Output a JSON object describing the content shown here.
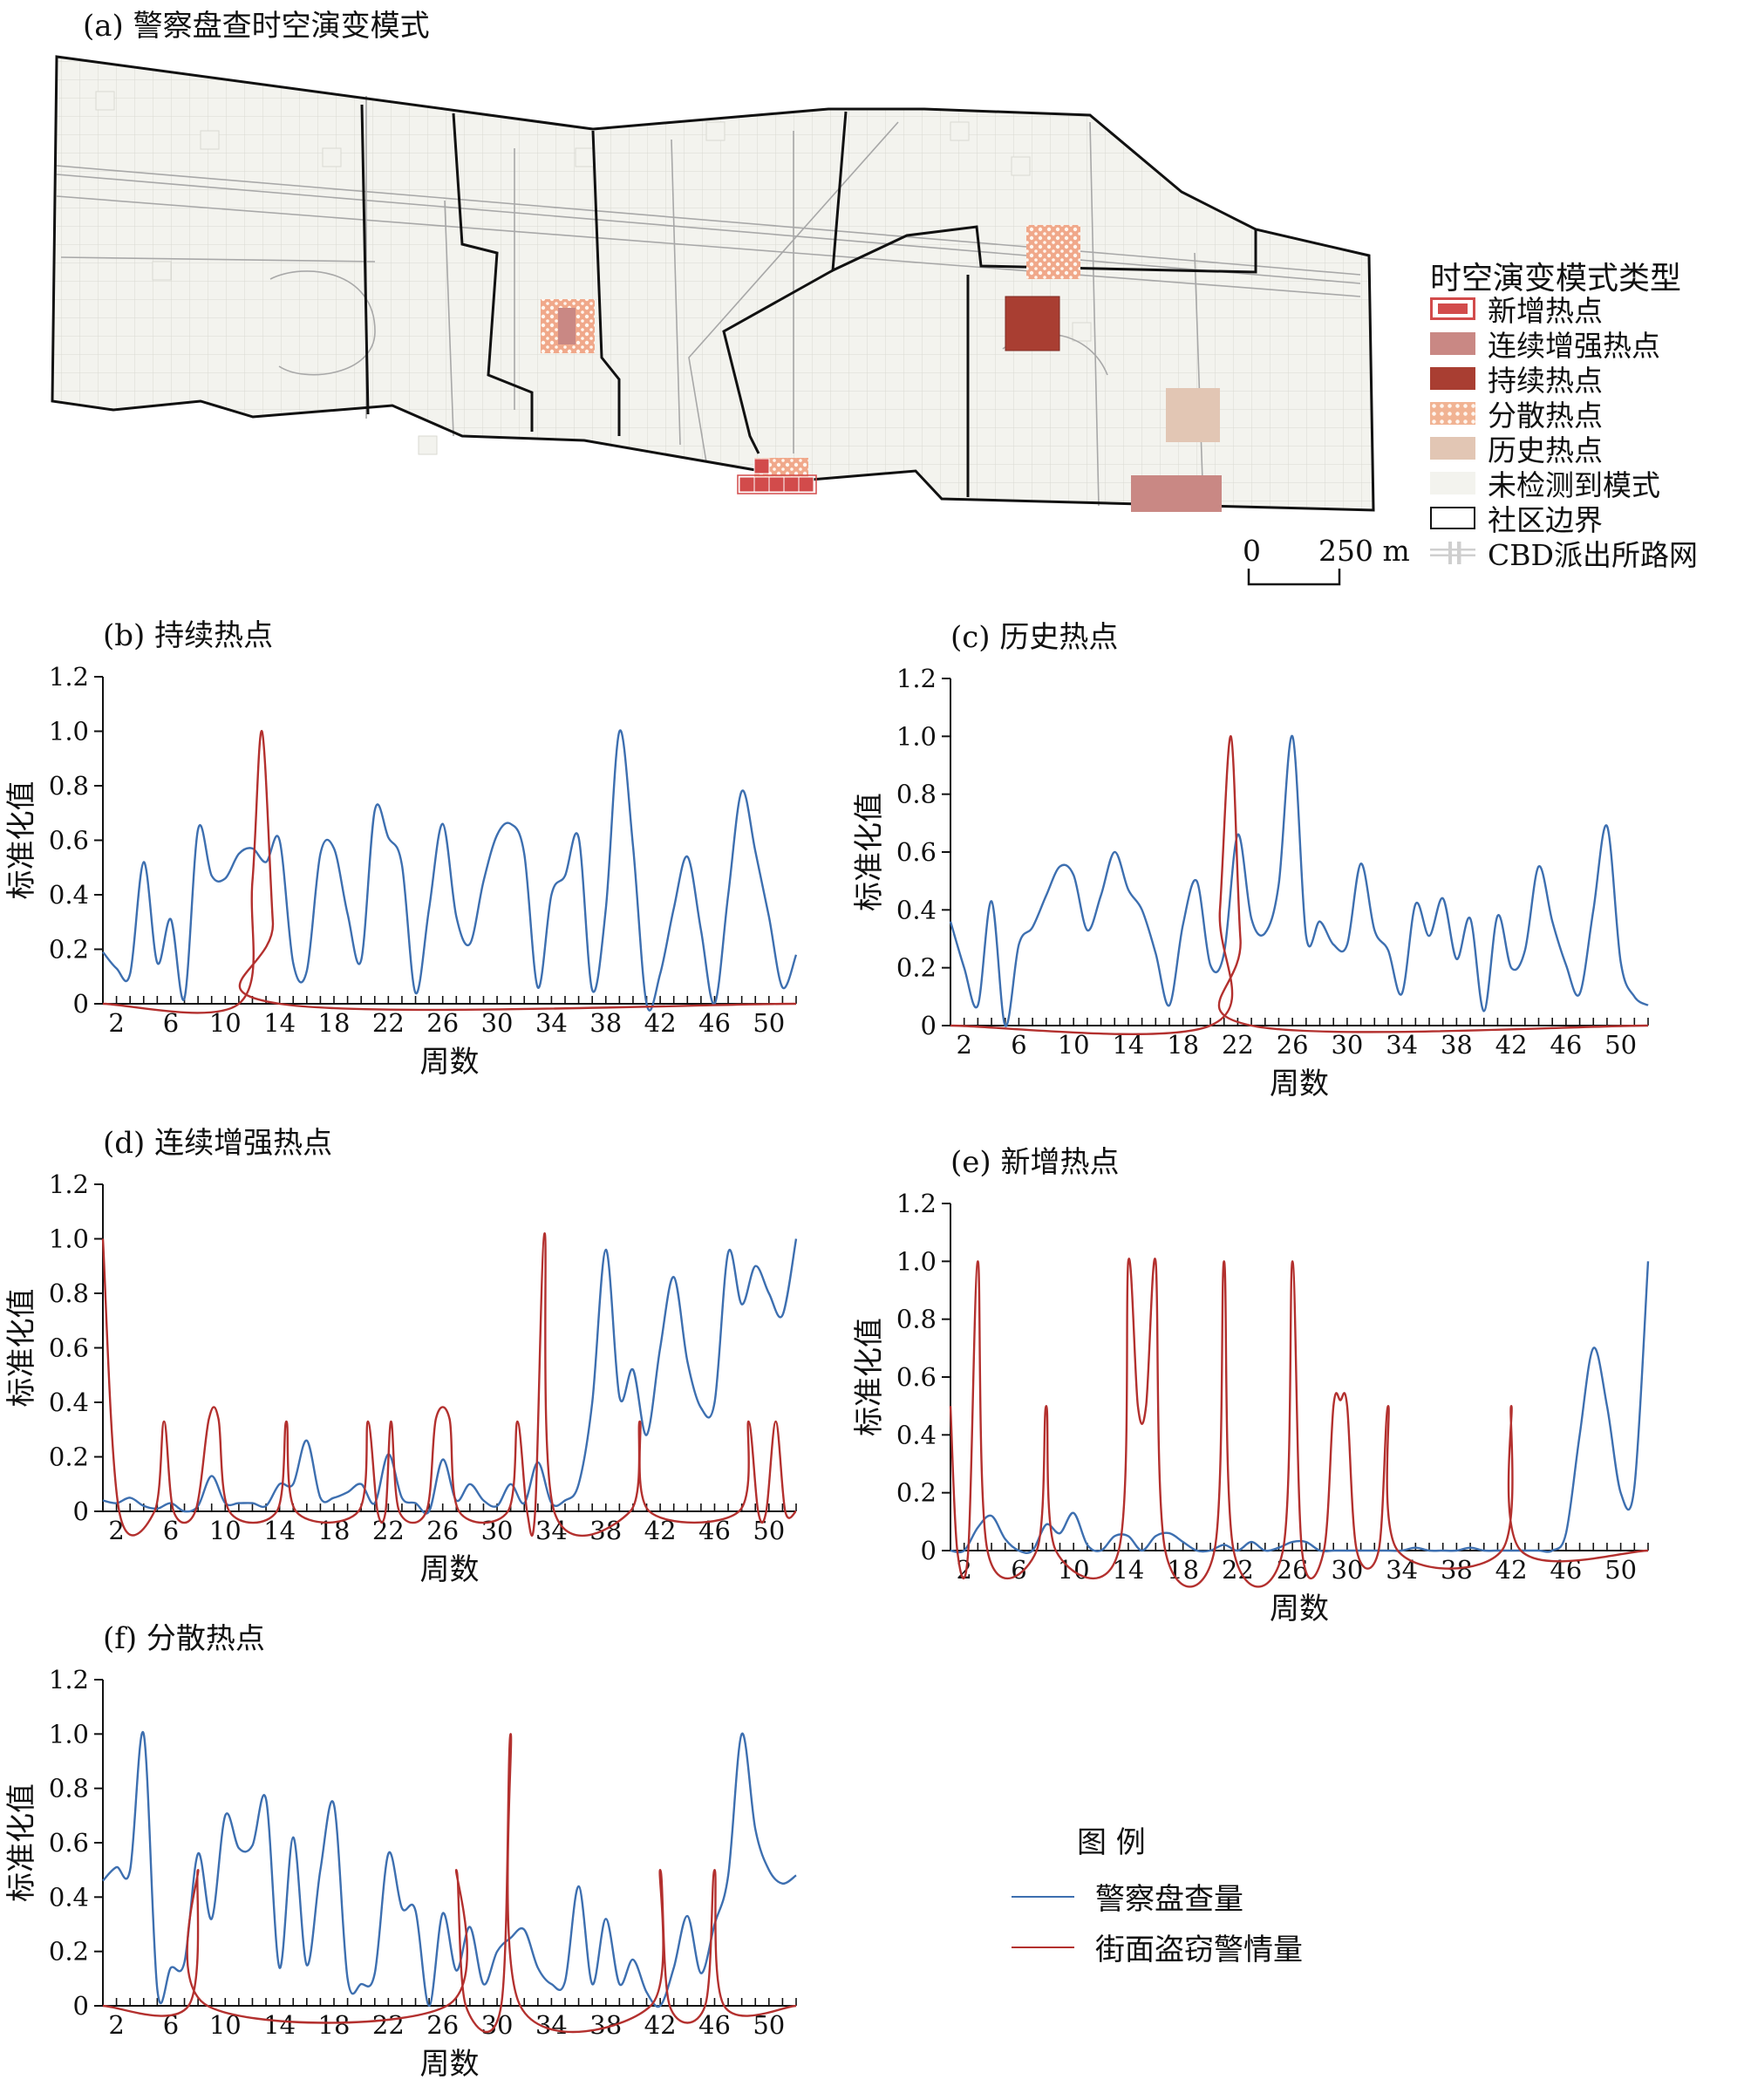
{
  "map": {
    "title": "(a) 警察盘查时空演变模式",
    "legend_title": "时空演变模式类型",
    "legend_items": [
      {
        "label": "新增热点",
        "color": "#d24b4b",
        "style": "outline"
      },
      {
        "label": "连续增强热点",
        "color": "#c98884",
        "style": "fill"
      },
      {
        "label": "持续热点",
        "color": "#a93e32",
        "style": "fill"
      },
      {
        "label": "分散热点",
        "color": "#f1b393",
        "style": "dots"
      },
      {
        "label": "历史热点",
        "color": "#e2c6b4",
        "style": "fill"
      },
      {
        "label": "未检测到模式",
        "color": "#f3f3ee",
        "style": "fill"
      },
      {
        "label": "社区边界",
        "color": "#111111",
        "style": "border"
      },
      {
        "label": "CBD派出所路网",
        "color": "#cfcfcf",
        "style": "grid"
      }
    ],
    "scale_zero": "0",
    "scale_label": "250 m"
  },
  "legend": {
    "title": "图 例",
    "items": [
      {
        "label": "警察盘查量",
        "color": "#3d6fb0"
      },
      {
        "label": "街面盗窃警情量",
        "color": "#b3302e"
      }
    ]
  },
  "chart_data": [
    {
      "type": "line",
      "title": "(b) 持续热点",
      "xlabel": "周数",
      "ylabel": "标准化值",
      "xlim": [
        1,
        52
      ],
      "ylim": [
        0,
        1.2
      ],
      "xticks": [
        2,
        6,
        10,
        14,
        18,
        22,
        26,
        30,
        34,
        38,
        42,
        46,
        50
      ],
      "yticks": [
        "0",
        "0.2",
        "0.4",
        "0.6",
        "0.8",
        "1.0",
        "1.2"
      ],
      "series": [
        {
          "name": "警察盘查量",
          "color": "#3d6fb0",
          "x": [
            1,
            2,
            3,
            4,
            5,
            6,
            7,
            8,
            9,
            10,
            11,
            12,
            13,
            14,
            15,
            16,
            17,
            18,
            19,
            20,
            21,
            22,
            23,
            24,
            25,
            26,
            27,
            28,
            29,
            30,
            31,
            32,
            33,
            34,
            35,
            36,
            37,
            38,
            39,
            40,
            41,
            42,
            43,
            44,
            45,
            46,
            47,
            48,
            49,
            50,
            51,
            52
          ],
          "y": [
            0.19,
            0.13,
            0.11,
            0.52,
            0.15,
            0.31,
            0.02,
            0.64,
            0.47,
            0.46,
            0.55,
            0.57,
            0.52,
            0.6,
            0.15,
            0.12,
            0.55,
            0.57,
            0.33,
            0.16,
            0.71,
            0.61,
            0.51,
            0.04,
            0.35,
            0.66,
            0.32,
            0.22,
            0.45,
            0.62,
            0.66,
            0.55,
            0.06,
            0.4,
            0.47,
            0.61,
            0.05,
            0.35,
            1.0,
            0.58,
            0.0,
            0.11,
            0.35,
            0.54,
            0.27,
            0.0,
            0.4,
            0.78,
            0.56,
            0.32,
            0.06,
            0.18
          ]
        },
        {
          "name": "街面盗窃警情量",
          "color": "#b3302e",
          "x": [
            1,
            11,
            12,
            12.7,
            13.5,
            14,
            52
          ],
          "y": [
            0,
            0,
            0.45,
            1.0,
            0.3,
            0,
            0
          ]
        }
      ]
    },
    {
      "type": "line",
      "title": "(c) 历史热点",
      "xlabel": "周数",
      "ylabel": "标准化值",
      "xlim": [
        1,
        52
      ],
      "ylim": [
        0,
        1.2
      ],
      "xticks": [
        2,
        6,
        10,
        14,
        18,
        22,
        26,
        30,
        34,
        38,
        42,
        46,
        50
      ],
      "yticks": [
        "0",
        "0.2",
        "0.4",
        "0.6",
        "0.8",
        "1.0",
        "1.2"
      ],
      "series": [
        {
          "name": "警察盘查量",
          "color": "#3d6fb0",
          "x": [
            1,
            2,
            3,
            4,
            5,
            6,
            7,
            8,
            9,
            10,
            11,
            12,
            13,
            14,
            15,
            16,
            17,
            18,
            19,
            20,
            21,
            22,
            23,
            24,
            25,
            26,
            27,
            28,
            29,
            30,
            31,
            32,
            33,
            34,
            35,
            36,
            37,
            38,
            39,
            40,
            41,
            42,
            43,
            44,
            45,
            46,
            47,
            48,
            49,
            50,
            51,
            52
          ],
          "y": [
            0.36,
            0.2,
            0.07,
            0.43,
            0.0,
            0.28,
            0.34,
            0.45,
            0.55,
            0.52,
            0.33,
            0.45,
            0.6,
            0.47,
            0.4,
            0.25,
            0.07,
            0.35,
            0.5,
            0.21,
            0.25,
            0.66,
            0.37,
            0.32,
            0.49,
            1.0,
            0.31,
            0.36,
            0.28,
            0.28,
            0.56,
            0.33,
            0.26,
            0.11,
            0.42,
            0.31,
            0.44,
            0.23,
            0.37,
            0.05,
            0.38,
            0.2,
            0.26,
            0.55,
            0.36,
            0.21,
            0.11,
            0.4,
            0.69,
            0.22,
            0.1,
            0.07
          ]
        },
        {
          "name": "街面盗窃警情量",
          "color": "#b3302e",
          "x": [
            1,
            20,
            20.7,
            21.5,
            22.2,
            23,
            52
          ],
          "y": [
            0,
            0,
            0.4,
            1.0,
            0.3,
            0,
            0
          ]
        }
      ]
    },
    {
      "type": "line",
      "title": "(d) 连续增强热点",
      "xlabel": "周数",
      "ylabel": "标准化值",
      "xlim": [
        1,
        52
      ],
      "ylim": [
        0,
        1.2
      ],
      "xticks": [
        2,
        6,
        10,
        14,
        18,
        22,
        26,
        30,
        34,
        38,
        42,
        46,
        50
      ],
      "yticks": [
        "0",
        "0.2",
        "0.4",
        "0.6",
        "0.8",
        "1.0",
        "1.2"
      ],
      "series": [
        {
          "name": "警察盘查量",
          "color": "#3d6fb0",
          "x": [
            1,
            2,
            3,
            4,
            5,
            6,
            7,
            8,
            9,
            10,
            11,
            12,
            13,
            14,
            15,
            16,
            17,
            18,
            19,
            20,
            21,
            22,
            23,
            24,
            25,
            26,
            27,
            28,
            29,
            30,
            31,
            32,
            33,
            34,
            35,
            36,
            37,
            38,
            39,
            40,
            41,
            42,
            43,
            44,
            45,
            46,
            47,
            48,
            49,
            50,
            51,
            52
          ],
          "y": [
            0.04,
            0.03,
            0.05,
            0.02,
            0.01,
            0.03,
            0.0,
            0.02,
            0.13,
            0.03,
            0.03,
            0.03,
            0.02,
            0.1,
            0.1,
            0.26,
            0.05,
            0.05,
            0.07,
            0.1,
            0.03,
            0.21,
            0.05,
            0.03,
            0.0,
            0.19,
            0.04,
            0.1,
            0.04,
            0.02,
            0.1,
            0.03,
            0.18,
            0.03,
            0.04,
            0.1,
            0.4,
            0.96,
            0.42,
            0.52,
            0.28,
            0.6,
            0.86,
            0.55,
            0.38,
            0.4,
            0.95,
            0.76,
            0.9,
            0.8,
            0.72,
            1.0
          ]
        },
        {
          "name": "街面盗窃警情量",
          "color": "#b3302e",
          "x": [
            1,
            2.2,
            4.8,
            5.5,
            6.2,
            7.8,
            8.8,
            9.5,
            10.3,
            13.8,
            14.5,
            15.2,
            19.8,
            20.5,
            21.2,
            21.8,
            22.2,
            22.8,
            24.8,
            25.5,
            26.5,
            27.2,
            30.8,
            31.5,
            32.2,
            32.8,
            33.5,
            34.2,
            39.8,
            40.5,
            41.2,
            47.8,
            48.5,
            49.2,
            49.8,
            50.5,
            51.2,
            52
          ],
          "y": [
            1.0,
            0,
            0,
            0.33,
            0,
            0,
            0.34,
            0.34,
            0,
            0,
            0.33,
            0,
            0,
            0.33,
            0,
            0,
            0.33,
            0,
            0,
            0.34,
            0.34,
            0,
            0,
            0.33,
            0,
            0,
            1.02,
            0,
            0,
            0.33,
            0,
            0,
            0.33,
            0,
            0,
            0.33,
            0,
            0
          ]
        }
      ]
    },
    {
      "type": "line",
      "title": "(e) 新增热点",
      "xlabel": "周数",
      "ylabel": "标准化值",
      "xlim": [
        1,
        52
      ],
      "ylim": [
        0,
        1.2
      ],
      "xticks": [
        2,
        6,
        10,
        14,
        18,
        22,
        26,
        30,
        34,
        38,
        42,
        46,
        50
      ],
      "yticks": [
        "0",
        "0.2",
        "0.4",
        "0.6",
        "0.8",
        "1.0",
        "1.2"
      ],
      "series": [
        {
          "name": "警察盘查量",
          "color": "#3d6fb0",
          "x": [
            1,
            2,
            3,
            4,
            5,
            6,
            7,
            8,
            9,
            10,
            11,
            12,
            13,
            14,
            15,
            16,
            17,
            18,
            19,
            20,
            21,
            22,
            23,
            24,
            25,
            26,
            27,
            28,
            29,
            30,
            31,
            32,
            33,
            34,
            35,
            36,
            37,
            38,
            39,
            40,
            41,
            42,
            43,
            44,
            45,
            46,
            47,
            48,
            49,
            50,
            51,
            52
          ],
          "y": [
            0,
            0,
            0.08,
            0.12,
            0.04,
            0,
            0,
            0.09,
            0.06,
            0.13,
            0.02,
            0.0,
            0.05,
            0.05,
            0.0,
            0.05,
            0.06,
            0.03,
            0.0,
            0.0,
            0.02,
            0.0,
            0.03,
            0.0,
            0.01,
            0.03,
            0.03,
            0.0,
            0.0,
            0.0,
            0.0,
            0.0,
            0.0,
            0.0,
            0.01,
            0.0,
            0.0,
            0.0,
            0.01,
            0.0,
            0.0,
            0.0,
            0.0,
            0.0,
            0.0,
            0.06,
            0.4,
            0.7,
            0.5,
            0.2,
            0.22,
            1.0
          ]
        },
        {
          "name": "街面盗窃警情量",
          "color": "#b3302e",
          "x": [
            1,
            1.5,
            2.3,
            3,
            3.7,
            7.3,
            8,
            8.7,
            13.3,
            14,
            14.7,
            15.3,
            16,
            16.7,
            20.3,
            21,
            21.7,
            25.3,
            26,
            26.7,
            28.3,
            29,
            29.5,
            30,
            30.7,
            32.3,
            33,
            33.7,
            41.3,
            42,
            42.7,
            52
          ],
          "y": [
            0.5,
            0,
            0,
            1.0,
            0,
            0,
            0.5,
            0,
            0,
            1.0,
            0.5,
            0.5,
            1.0,
            0,
            0,
            1.0,
            0,
            0,
            1.0,
            0,
            0,
            0.5,
            0.52,
            0.5,
            0,
            0,
            0.5,
            0,
            0,
            0.5,
            0,
            0
          ]
        }
      ]
    },
    {
      "type": "line",
      "title": "(f) 分散热点",
      "xlabel": "周数",
      "ylabel": "标准化值",
      "xlim": [
        1,
        52
      ],
      "ylim": [
        0,
        1.2
      ],
      "xticks": [
        2,
        6,
        10,
        14,
        18,
        22,
        26,
        30,
        34,
        38,
        42,
        46,
        50
      ],
      "yticks": [
        "0",
        "0.2",
        "0.4",
        "0.6",
        "0.8",
        "1.0",
        "1.2"
      ],
      "series": [
        {
          "name": "警察盘查量",
          "color": "#3d6fb0",
          "x": [
            1,
            2,
            3,
            4,
            5,
            6,
            7,
            8,
            9,
            10,
            11,
            12,
            13,
            14,
            15,
            16,
            17,
            18,
            19,
            20,
            21,
            22,
            23,
            24,
            25,
            26,
            27,
            28,
            29,
            30,
            31,
            32,
            33,
            34,
            35,
            36,
            37,
            38,
            39,
            40,
            41,
            42,
            43,
            44,
            45,
            46,
            47,
            48,
            49,
            50,
            51,
            52
          ],
          "y": [
            0.46,
            0.51,
            0.5,
            1.0,
            0.06,
            0.14,
            0.16,
            0.56,
            0.32,
            0.7,
            0.58,
            0.59,
            0.76,
            0.14,
            0.62,
            0.15,
            0.5,
            0.74,
            0.1,
            0.08,
            0.12,
            0.56,
            0.36,
            0.35,
            0.0,
            0.34,
            0.13,
            0.29,
            0.08,
            0.2,
            0.25,
            0.28,
            0.14,
            0.08,
            0.09,
            0.44,
            0.08,
            0.32,
            0.08,
            0.17,
            0.05,
            0.0,
            0.14,
            0.33,
            0.12,
            0.3,
            0.48,
            1.0,
            0.65,
            0.5,
            0.45,
            0.48
          ]
        },
        {
          "name": "街面盗窃警情量",
          "color": "#b3302e",
          "x": [
            1,
            7.3,
            8,
            8.7,
            26.3,
            27,
            27.7,
            30.3,
            31,
            31.7,
            41.3,
            42,
            42.7,
            45.3,
            46,
            46.7,
            52
          ],
          "y": [
            0,
            0,
            0.5,
            0,
            0,
            0.5,
            0,
            0,
            1.0,
            0,
            0,
            0.5,
            0,
            0,
            0.5,
            0,
            0
          ]
        }
      ]
    }
  ]
}
